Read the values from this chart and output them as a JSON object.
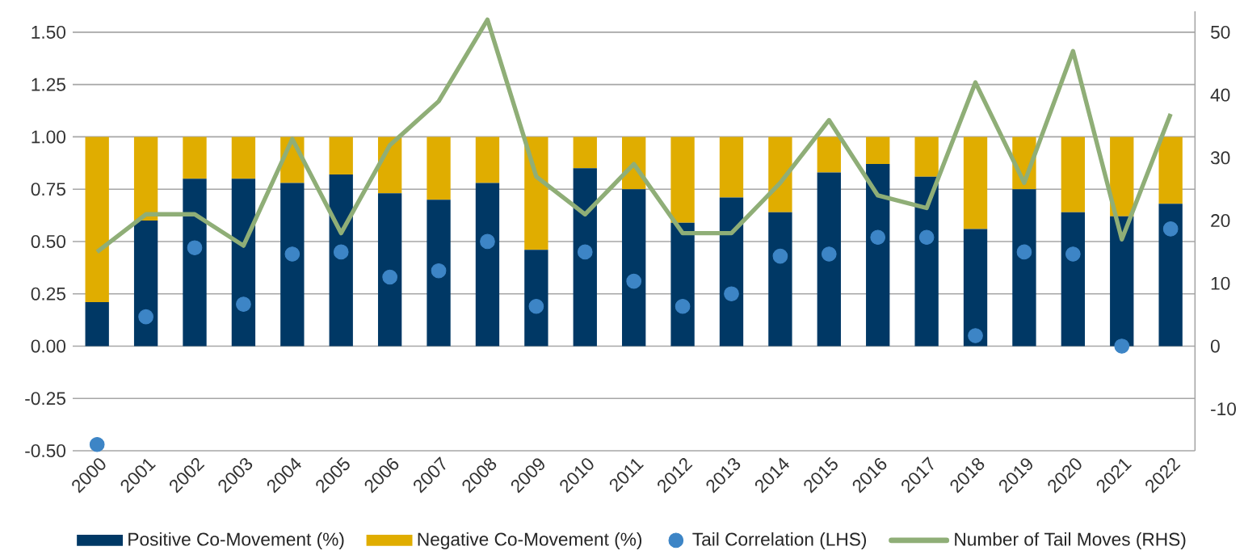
{
  "chart_data": {
    "type": "bar",
    "stacked": true,
    "grid": "y",
    "legend": "bottom",
    "categories": [
      "2000",
      "2001",
      "2002",
      "2003",
      "2004",
      "2005",
      "2006",
      "2007",
      "2008",
      "2009",
      "2010",
      "2011",
      "2012",
      "2013",
      "2014",
      "2015",
      "2016",
      "2017",
      "2018",
      "2019",
      "2020",
      "2021",
      "2022"
    ],
    "series": [
      {
        "name": "Positive Co-Movement (%)",
        "color": "#003865",
        "values": [
          0.21,
          0.6,
          0.8,
          0.8,
          0.78,
          0.82,
          0.73,
          0.7,
          0.78,
          0.46,
          0.85,
          0.75,
          0.59,
          0.71,
          0.64,
          0.83,
          0.87,
          0.81,
          0.56,
          0.75,
          0.64,
          0.62,
          0.68
        ]
      },
      {
        "name": "Negative Co-Movement (%)",
        "color": "#e0ad00",
        "values": [
          0.79,
          0.4,
          0.2,
          0.2,
          0.22,
          0.18,
          0.27,
          0.3,
          0.22,
          0.54,
          0.15,
          0.25,
          0.41,
          0.29,
          0.36,
          0.17,
          0.13,
          0.19,
          0.44,
          0.25,
          0.36,
          0.38,
          0.32
        ]
      },
      {
        "name": "Tail Correlation (LHS)",
        "type": "scatter",
        "marker": "circle",
        "color": "#3d85c6",
        "values": [
          -0.47,
          0.14,
          0.47,
          0.2,
          0.44,
          0.45,
          0.33,
          0.36,
          0.5,
          0.19,
          0.45,
          0.31,
          0.19,
          0.25,
          0.43,
          0.44,
          0.52,
          0.52,
          0.05,
          0.45,
          0.44,
          0.0,
          0.56
        ]
      },
      {
        "name": "Number of Tail Moves (RHS)",
        "type": "line",
        "axis": "y2",
        "color": "#8fae77",
        "values": [
          15,
          21,
          21,
          16,
          33,
          18,
          32,
          39,
          52,
          27,
          21,
          29,
          18,
          18,
          26,
          36,
          24,
          22,
          42,
          26,
          47,
          17,
          37
        ]
      }
    ],
    "ylim": [
      -0.5,
      1.6
    ],
    "yticks": [
      {
        "value": -0.5,
        "label": "-0.50"
      },
      {
        "value": -0.25,
        "label": "-0.25"
      },
      {
        "value": 0,
        "label": "0.00"
      },
      {
        "value": 0.25,
        "label": "0.25"
      },
      {
        "value": 0.5,
        "label": "0.50"
      },
      {
        "value": 0.75,
        "label": "0.75"
      },
      {
        "value": 1,
        "label": "1.00"
      },
      {
        "value": 1.25,
        "label": "1.25"
      },
      {
        "value": 1.5,
        "label": "1.50"
      }
    ],
    "y2lim": [
      -16.6667,
      53.3333
    ],
    "y2ticks": [
      -10,
      0,
      10,
      20,
      30,
      40,
      50
    ]
  }
}
